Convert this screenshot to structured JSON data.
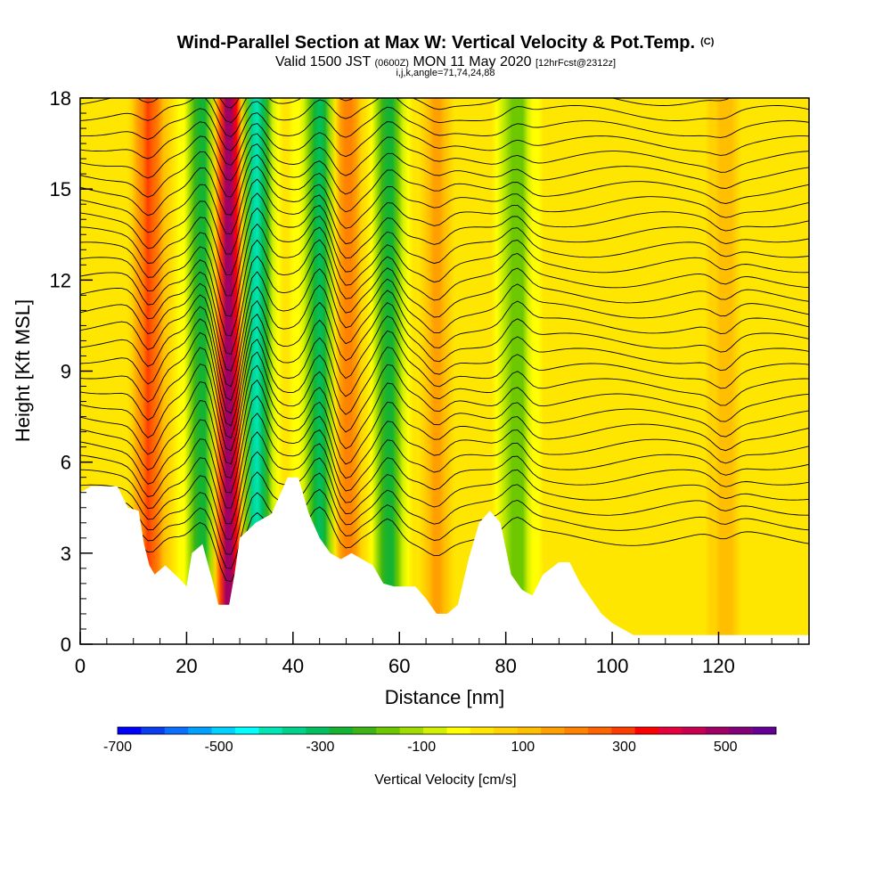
{
  "header": {
    "title": "Wind-Parallel Section at Max W: Vertical Velocity & Pot.Temp.",
    "copyright": "(C)",
    "valid_prefix": "Valid 1500 JST",
    "valid_utc": "(0600Z)",
    "valid_date": "MON 11 May 2020",
    "forecast": "[12hrFcst@2312z]",
    "indices": "i,j,k,angle=71,74,24,88"
  },
  "chart_data": {
    "type": "heatmap",
    "title": "Wind-Parallel Section at Max W: Vertical Velocity & Pot.Temp.",
    "xlabel": "Distance [nm]",
    "ylabel": "Height [Kft MSL]",
    "xlim": [
      0,
      137
    ],
    "ylim": [
      0,
      18
    ],
    "x_ticks": [
      0,
      20,
      40,
      60,
      80,
      100,
      120
    ],
    "y_ticks": [
      0,
      3,
      6,
      9,
      12,
      15,
      18
    ],
    "colorbar": {
      "label": "Vertical Velocity [cm/s]",
      "tick_values": [
        -700,
        -500,
        -300,
        -100,
        100,
        300,
        500
      ],
      "tick_labels": [
        "-700",
        "-500",
        "-300",
        "-100",
        "100",
        "300",
        "500"
      ],
      "range": [
        -700,
        600
      ],
      "step": 50,
      "colors": [
        "#0000ff",
        "#0a3cf0",
        "#0a6eff",
        "#00a0ff",
        "#00d2ff",
        "#00ffff",
        "#00e6b4",
        "#00d28c",
        "#00c060",
        "#14b432",
        "#3cb414",
        "#6ec800",
        "#a0dc00",
        "#d2f000",
        "#ffff00",
        "#ffe600",
        "#ffd200",
        "#ffbe00",
        "#ffa000",
        "#ff8200",
        "#ff6400",
        "#ff3c00",
        "#ff0000",
        "#e6003c",
        "#c80050",
        "#a00064",
        "#820078",
        "#640096"
      ]
    },
    "updrafts": [
      {
        "x": 13,
        "w": 300
      },
      {
        "x": 28,
        "w": 550
      },
      {
        "x": 50,
        "w": 250
      },
      {
        "x": 67,
        "w": 150
      },
      {
        "x": 121,
        "w": 120
      }
    ],
    "downdrafts": [
      {
        "x": 23,
        "w": -300
      },
      {
        "x": 33,
        "w": -450
      },
      {
        "x": 45,
        "w": -350
      },
      {
        "x": 58,
        "w": -300
      },
      {
        "x": 82,
        "w": -200
      }
    ],
    "terrain": [
      [
        0,
        5.0
      ],
      [
        2,
        5.2
      ],
      [
        7,
        5.2
      ],
      [
        9,
        4.5
      ],
      [
        11,
        4.4
      ],
      [
        12,
        3.3
      ],
      [
        13,
        2.6
      ],
      [
        14,
        2.3
      ],
      [
        16,
        2.6
      ],
      [
        19,
        2.1
      ],
      [
        20,
        1.9
      ],
      [
        21,
        3.0
      ],
      [
        23,
        3.3
      ],
      [
        25,
        2.0
      ],
      [
        26,
        1.3
      ],
      [
        28,
        1.3
      ],
      [
        29,
        2.3
      ],
      [
        30,
        3.5
      ],
      [
        33,
        4.0
      ],
      [
        36,
        4.3
      ],
      [
        39,
        5.5
      ],
      [
        41,
        5.5
      ],
      [
        43,
        4.3
      ],
      [
        45,
        3.5
      ],
      [
        47,
        3.0
      ],
      [
        49,
        2.8
      ],
      [
        51,
        3.0
      ],
      [
        53,
        2.8
      ],
      [
        55,
        2.6
      ],
      [
        57,
        2.0
      ],
      [
        59,
        1.9
      ],
      [
        63,
        1.9
      ],
      [
        65,
        1.5
      ],
      [
        67,
        1.0
      ],
      [
        69,
        1.0
      ],
      [
        71,
        1.3
      ],
      [
        73,
        2.8
      ],
      [
        75,
        4.0
      ],
      [
        77,
        4.4
      ],
      [
        79,
        4.0
      ],
      [
        81,
        2.3
      ],
      [
        83,
        1.8
      ],
      [
        85,
        1.6
      ],
      [
        87,
        2.3
      ],
      [
        90,
        2.7
      ],
      [
        92,
        2.7
      ],
      [
        94,
        2.0
      ],
      [
        96,
        1.5
      ],
      [
        98,
        1.0
      ],
      [
        100,
        0.7
      ],
      [
        104,
        0.3
      ],
      [
        137,
        0.3
      ]
    ]
  }
}
